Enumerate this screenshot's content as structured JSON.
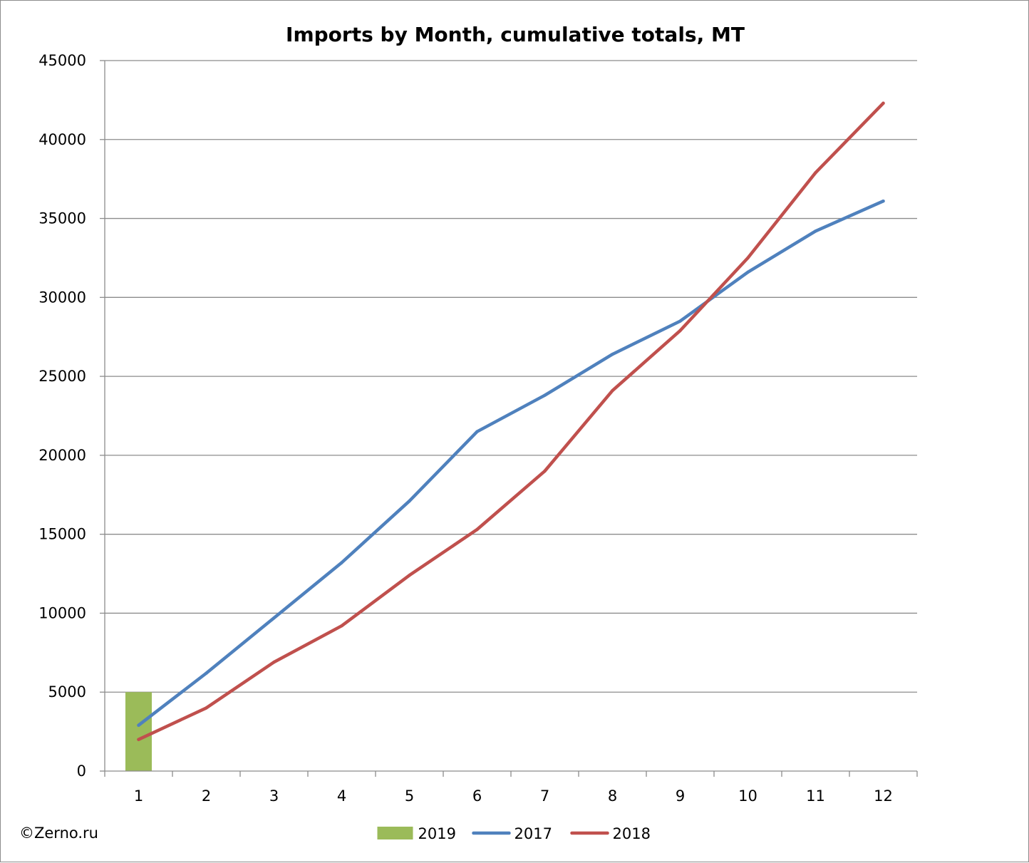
{
  "chart_data": {
    "type": "line",
    "title": "Imports by Month, cumulative totals, MT",
    "xlabel": "",
    "ylabel": "",
    "categories": [
      "1",
      "2",
      "3",
      "4",
      "5",
      "6",
      "7",
      "8",
      "9",
      "10",
      "11",
      "12"
    ],
    "ylim": [
      0,
      45000
    ],
    "yticks": [
      "0",
      "5000",
      "10000",
      "15000",
      "20000",
      "25000",
      "30000",
      "35000",
      "40000",
      "45000"
    ],
    "grid": "horizontal",
    "legend_position": "bottom",
    "series": [
      {
        "name": "2019",
        "kind": "bar",
        "color": "#9bbb59",
        "values": [
          5000,
          null,
          null,
          null,
          null,
          null,
          null,
          null,
          null,
          null,
          null,
          null
        ]
      },
      {
        "name": "2017",
        "kind": "line",
        "color": "#4f81bd",
        "values": [
          2900,
          6200,
          9700,
          13200,
          17100,
          21500,
          23800,
          26400,
          28500,
          31600,
          34200,
          36100
        ]
      },
      {
        "name": "2018",
        "kind": "line",
        "color": "#c0504d",
        "values": [
          2000,
          4000,
          6900,
          9200,
          12400,
          15300,
          19000,
          24100,
          27900,
          32500,
          37900,
          42300
        ]
      }
    ]
  },
  "footer": {
    "copyright": "©Zerno.ru"
  }
}
